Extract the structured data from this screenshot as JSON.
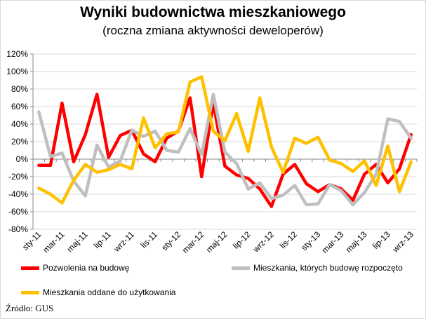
{
  "chart_data": {
    "type": "line",
    "title": "Wyniki budownictwa mieszkaniowego",
    "subtitle": "(roczna zmiana aktywności deweloperów)",
    "ylim": [
      -80,
      120
    ],
    "ytick_step": 20,
    "ytick_labels": [
      "-80%",
      "-60%",
      "-40%",
      "-20%",
      "0%",
      "20%",
      "40%",
      "60%",
      "80%",
      "100%",
      "120%"
    ],
    "x": [
      "sty-11",
      "lut-11",
      "mar-11",
      "kwi-11",
      "maj-11",
      "cze-11",
      "lip-11",
      "sie-11",
      "wrz-11",
      "paź-11",
      "lis-11",
      "gru-11",
      "sty-12",
      "lut-12",
      "mar-12",
      "kwi-12",
      "maj-12",
      "cze-12",
      "lip-12",
      "sie-12",
      "wrz-12",
      "paź-12",
      "lis-12",
      "gru-12",
      "sty-13",
      "lut-13",
      "mar-13",
      "kwi-13",
      "maj-13",
      "cze-13",
      "lip-13",
      "sie-13",
      "wrz-13"
    ],
    "x_tick_labels": [
      "sty-11",
      "mar-11",
      "maj-11",
      "lip-11",
      "wrz-11",
      "lis-11",
      "sty-12",
      "mar-12",
      "maj-12",
      "lip-12",
      "wrz-12",
      "lis-12",
      "sty-13",
      "mar-13",
      "maj-13",
      "lip-13",
      "wrz-13"
    ],
    "grid": true,
    "legend_position": "bottom",
    "series": [
      {
        "name": "Pozwolenia na budowę",
        "color": "#ff0000",
        "values": [
          -7,
          -7,
          64,
          -3,
          28,
          74,
          2,
          27,
          33,
          6,
          -3,
          24,
          32,
          70,
          -20,
          64,
          -8,
          -18,
          -22,
          -34,
          -54,
          -17,
          -6,
          -28,
          -37,
          -29,
          -34,
          -47,
          -17,
          -6,
          -27,
          -11,
          28
        ]
      },
      {
        "name": "Mieszkania, których budowę rozpoczęto",
        "color": "#bfbfbf",
        "values": [
          54,
          3,
          7,
          -25,
          -42,
          16,
          -9,
          -2,
          33,
          26,
          32,
          10,
          8,
          35,
          5,
          74,
          8,
          -5,
          -34,
          -27,
          -45,
          -41,
          -30,
          -52,
          -51,
          -29,
          -36,
          -52,
          -38,
          -17,
          46,
          43,
          24
        ]
      },
      {
        "name": "Mieszkania oddane do użytkowania",
        "color": "#ffc000",
        "values": [
          -33,
          -40,
          -50,
          -24,
          -6,
          -15,
          -12,
          -6,
          -11,
          47,
          13,
          29,
          31,
          88,
          94,
          32,
          21,
          52,
          9,
          70,
          14,
          -15,
          24,
          18,
          25,
          -1,
          -5,
          -14,
          -2,
          -30,
          15,
          -37,
          -3
        ]
      }
    ]
  },
  "source_text": "Źródło: GUS"
}
